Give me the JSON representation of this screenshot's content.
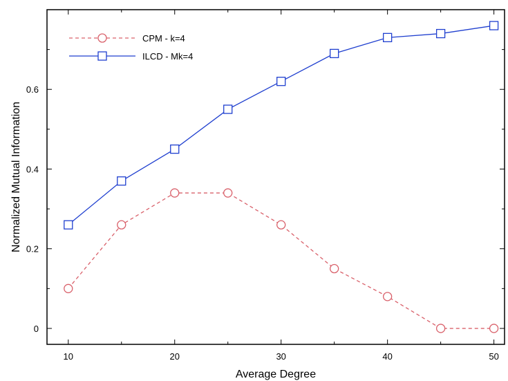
{
  "chart_data": {
    "type": "line",
    "title": "",
    "xlabel": "Average Degree",
    "ylabel": "Normalized Mutual Information",
    "xlim": [
      8,
      51
    ],
    "ylim": [
      -0.04,
      0.8
    ],
    "x_ticks": [
      10,
      20,
      30,
      40,
      50
    ],
    "x_tick_labels": [
      "10",
      "20",
      "30",
      "40",
      "50"
    ],
    "y_ticks": [
      0,
      0.2,
      0.4,
      0.6
    ],
    "y_tick_labels": [
      "0",
      "0.2",
      "0.4",
      "0.6"
    ],
    "grid": false,
    "legend_position": "top-left",
    "x": [
      10,
      15,
      20,
      25,
      30,
      35,
      40,
      45,
      50
    ],
    "series": [
      {
        "name": "CPM - k=4",
        "values": [
          0.1,
          0.26,
          0.34,
          0.34,
          0.26,
          0.15,
          0.08,
          0.0,
          0.0
        ],
        "color": "#d9606a",
        "line_style": "dashed",
        "marker": "circle"
      },
      {
        "name": "ILCD - Mk=4",
        "values": [
          0.26,
          0.37,
          0.45,
          0.55,
          0.62,
          0.69,
          0.73,
          0.74,
          0.76
        ],
        "color": "#1f3fcf",
        "line_style": "solid",
        "marker": "square"
      }
    ]
  }
}
